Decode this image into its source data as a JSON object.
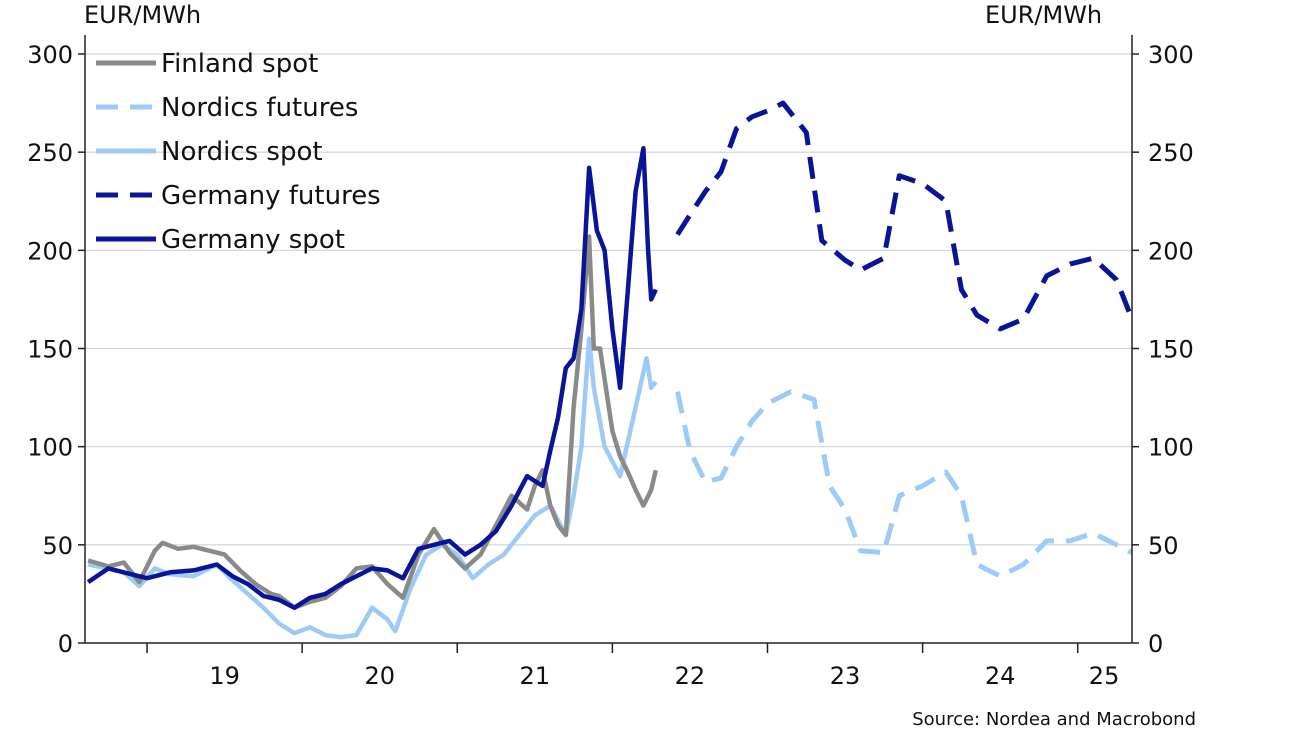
{
  "chart_data": {
    "type": "line",
    "y_unit_left": "EUR/MWh",
    "y_unit_right": "EUR/MWh",
    "ylim": [
      0,
      300
    ],
    "y_ticks": [
      0,
      50,
      100,
      150,
      200,
      250,
      300
    ],
    "y_tick_labels": [
      "0",
      "50",
      "100",
      "150",
      "200",
      "250",
      "300"
    ],
    "xlim": [
      2018.6,
      2025.35
    ],
    "x_tick_labels": [
      "19",
      "20",
      "21",
      "22",
      "23",
      "24",
      "25"
    ],
    "x_tick_label_positions": [
      2019.5,
      2020.5,
      2021.5,
      2022.5,
      2023.5,
      2024.5,
      2025.17
    ],
    "x_tick_marks": [
      2019,
      2020,
      2021,
      2022,
      2023,
      2024,
      2025
    ],
    "grid": true,
    "legend_position": "top-left",
    "source": "Source: Nordea and Macrobond",
    "colors": {
      "finland_spot": "#8a8a8a",
      "nordics_futures": "#9ecbf5",
      "nordics_spot": "#9ecbf5",
      "germany_futures": "#0a1499",
      "germany_spot": "#0a1499",
      "grid": "#c9d3de",
      "axis": "#222222"
    },
    "series": [
      {
        "name": "Finland spot",
        "style": "solid",
        "color_key": "finland_spot",
        "points": [
          [
            2018.62,
            42
          ],
          [
            2018.75,
            39
          ],
          [
            2018.85,
            41
          ],
          [
            2018.95,
            31
          ],
          [
            2019.05,
            47
          ],
          [
            2019.1,
            51
          ],
          [
            2019.2,
            48
          ],
          [
            2019.3,
            49
          ],
          [
            2019.4,
            47
          ],
          [
            2019.5,
            45
          ],
          [
            2019.6,
            37
          ],
          [
            2019.7,
            30
          ],
          [
            2019.8,
            25
          ],
          [
            2019.85,
            24
          ],
          [
            2019.95,
            18
          ],
          [
            2020.05,
            21
          ],
          [
            2020.15,
            23
          ],
          [
            2020.25,
            29
          ],
          [
            2020.35,
            38
          ],
          [
            2020.45,
            39
          ],
          [
            2020.55,
            30
          ],
          [
            2020.65,
            23
          ],
          [
            2020.75,
            45
          ],
          [
            2020.85,
            58
          ],
          [
            2020.95,
            46
          ],
          [
            2021.05,
            38
          ],
          [
            2021.15,
            45
          ],
          [
            2021.25,
            60
          ],
          [
            2021.35,
            75
          ],
          [
            2021.45,
            68
          ],
          [
            2021.5,
            80
          ],
          [
            2021.55,
            88
          ],
          [
            2021.6,
            70
          ],
          [
            2021.65,
            60
          ],
          [
            2021.7,
            55
          ],
          [
            2021.75,
            120
          ],
          [
            2021.8,
            160
          ],
          [
            2021.85,
            207
          ],
          [
            2021.88,
            150
          ],
          [
            2021.92,
            150
          ],
          [
            2022.0,
            108
          ],
          [
            2022.05,
            95
          ],
          [
            2022.1,
            87
          ],
          [
            2022.15,
            78
          ],
          [
            2022.2,
            70
          ],
          [
            2022.25,
            78
          ],
          [
            2022.28,
            88
          ]
        ]
      },
      {
        "name": "Nordics futures",
        "style": "dashed",
        "color_key": "nordics_futures",
        "points": [
          [
            2022.42,
            128
          ],
          [
            2022.5,
            98
          ],
          [
            2022.6,
            82
          ],
          [
            2022.7,
            84
          ],
          [
            2022.8,
            100
          ],
          [
            2022.9,
            113
          ],
          [
            2023.0,
            122
          ],
          [
            2023.15,
            128
          ],
          [
            2023.3,
            124
          ],
          [
            2023.4,
            80
          ],
          [
            2023.5,
            68
          ],
          [
            2023.6,
            47
          ],
          [
            2023.75,
            46
          ],
          [
            2023.85,
            75
          ],
          [
            2024.0,
            80
          ],
          [
            2024.15,
            87
          ],
          [
            2024.25,
            75
          ],
          [
            2024.35,
            40
          ],
          [
            2024.5,
            34
          ],
          [
            2024.65,
            40
          ],
          [
            2024.8,
            52
          ],
          [
            2024.95,
            52
          ],
          [
            2025.1,
            56
          ],
          [
            2025.25,
            50
          ],
          [
            2025.35,
            46
          ]
        ]
      },
      {
        "name": "Nordics spot",
        "style": "solid",
        "color_key": "nordics_spot",
        "points": [
          [
            2018.62,
            40
          ],
          [
            2018.75,
            38
          ],
          [
            2018.85,
            36
          ],
          [
            2018.95,
            29
          ],
          [
            2019.05,
            38
          ],
          [
            2019.15,
            35
          ],
          [
            2019.3,
            34
          ],
          [
            2019.45,
            40
          ],
          [
            2019.55,
            32
          ],
          [
            2019.65,
            25
          ],
          [
            2019.75,
            18
          ],
          [
            2019.85,
            10
          ],
          [
            2019.95,
            5
          ],
          [
            2020.05,
            8
          ],
          [
            2020.15,
            4
          ],
          [
            2020.25,
            3
          ],
          [
            2020.35,
            4
          ],
          [
            2020.45,
            18
          ],
          [
            2020.55,
            12
          ],
          [
            2020.6,
            6
          ],
          [
            2020.7,
            28
          ],
          [
            2020.8,
            45
          ],
          [
            2020.9,
            50
          ],
          [
            2021.0,
            45
          ],
          [
            2021.1,
            33
          ],
          [
            2021.2,
            40
          ],
          [
            2021.3,
            45
          ],
          [
            2021.4,
            55
          ],
          [
            2021.5,
            65
          ],
          [
            2021.6,
            70
          ],
          [
            2021.7,
            55
          ],
          [
            2021.75,
            75
          ],
          [
            2021.8,
            100
          ],
          [
            2021.85,
            155
          ],
          [
            2021.88,
            130
          ],
          [
            2021.95,
            100
          ],
          [
            2022.05,
            85
          ],
          [
            2022.15,
            120
          ],
          [
            2022.22,
            145
          ],
          [
            2022.25,
            130
          ],
          [
            2022.28,
            133
          ]
        ]
      },
      {
        "name": "Germany futures",
        "style": "dashed",
        "color_key": "germany_futures",
        "points": [
          [
            2022.42,
            208
          ],
          [
            2022.5,
            218
          ],
          [
            2022.6,
            230
          ],
          [
            2022.7,
            240
          ],
          [
            2022.8,
            262
          ],
          [
            2022.9,
            268
          ],
          [
            2023.0,
            271
          ],
          [
            2023.1,
            275
          ],
          [
            2023.25,
            260
          ],
          [
            2023.35,
            205
          ],
          [
            2023.5,
            195
          ],
          [
            2023.6,
            190
          ],
          [
            2023.75,
            196
          ],
          [
            2023.85,
            238
          ],
          [
            2024.0,
            234
          ],
          [
            2024.15,
            225
          ],
          [
            2024.25,
            180
          ],
          [
            2024.35,
            167
          ],
          [
            2024.5,
            160
          ],
          [
            2024.65,
            165
          ],
          [
            2024.8,
            187
          ],
          [
            2024.95,
            193
          ],
          [
            2025.1,
            196
          ],
          [
            2025.25,
            185
          ],
          [
            2025.35,
            165
          ]
        ]
      },
      {
        "name": "Germany spot",
        "style": "solid",
        "color_key": "germany_spot",
        "points": [
          [
            2018.62,
            31
          ],
          [
            2018.75,
            38
          ],
          [
            2018.9,
            35
          ],
          [
            2019.0,
            33
          ],
          [
            2019.15,
            36
          ],
          [
            2019.3,
            37
          ],
          [
            2019.45,
            40
          ],
          [
            2019.55,
            34
          ],
          [
            2019.65,
            30
          ],
          [
            2019.75,
            24
          ],
          [
            2019.85,
            22
          ],
          [
            2019.95,
            18
          ],
          [
            2020.05,
            23
          ],
          [
            2020.15,
            25
          ],
          [
            2020.25,
            30
          ],
          [
            2020.35,
            34
          ],
          [
            2020.45,
            38
          ],
          [
            2020.55,
            37
          ],
          [
            2020.65,
            33
          ],
          [
            2020.75,
            48
          ],
          [
            2020.85,
            50
          ],
          [
            2020.95,
            52
          ],
          [
            2021.05,
            45
          ],
          [
            2021.15,
            50
          ],
          [
            2021.25,
            57
          ],
          [
            2021.35,
            70
          ],
          [
            2021.45,
            85
          ],
          [
            2021.55,
            80
          ],
          [
            2021.6,
            98
          ],
          [
            2021.65,
            115
          ],
          [
            2021.7,
            140
          ],
          [
            2021.75,
            145
          ],
          [
            2021.8,
            170
          ],
          [
            2021.85,
            242
          ],
          [
            2021.9,
            210
          ],
          [
            2021.95,
            200
          ],
          [
            2022.0,
            160
          ],
          [
            2022.05,
            130
          ],
          [
            2022.1,
            180
          ],
          [
            2022.15,
            230
          ],
          [
            2022.2,
            252
          ],
          [
            2022.23,
            200
          ],
          [
            2022.25,
            175
          ],
          [
            2022.28,
            180
          ]
        ]
      }
    ]
  }
}
